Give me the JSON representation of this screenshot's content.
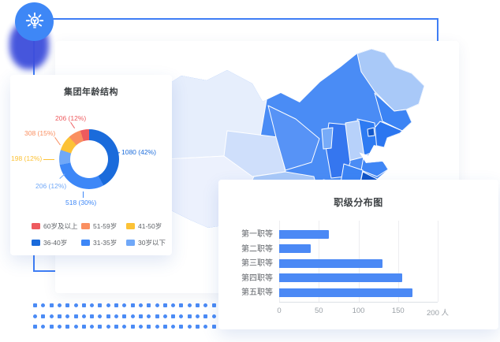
{
  "canvas": {
    "background": "#ffffff",
    "accent_line_color": "#3f7ef5"
  },
  "hero_icon": {
    "name": "lightbulb",
    "bg_color": "#3e87f6",
    "shadow_color": "#3d4ddb"
  },
  "age_chart": {
    "title": "集团年龄结构",
    "segments": [
      {
        "label": "36-40岁",
        "value": 1080,
        "pct": "42%",
        "color": "#1a6bdb",
        "sweep_deg": 151
      },
      {
        "label": "31-35岁",
        "value": 518,
        "pct": "30%",
        "color": "#3d87f7",
        "sweep_deg": 108
      },
      {
        "label": "30岁以下",
        "value": 206,
        "pct": "12%",
        "color": "#70a8f8",
        "sweep_deg": 29
      },
      {
        "label": "41-50岁",
        "value": 198,
        "pct": "12%",
        "color": "#fcc236",
        "sweep_deg": 30
      },
      {
        "label": "51-59岁",
        "value": 308,
        "pct": "15%",
        "color": "#fa8f60",
        "sweep_deg": 25
      },
      {
        "label": "60岁及以上",
        "value": 206,
        "pct": "12%",
        "color": "#ee5a5e",
        "sweep_deg": 17
      }
    ],
    "callouts": [
      {
        "text": "206 (12%)",
        "color": "#ee5a5e"
      },
      {
        "text": "308 (15%)",
        "color": "#fa8f60"
      },
      {
        "text": "198 (12%)",
        "color": "#fcc236"
      },
      {
        "text": "206 (12%)",
        "color": "#70a8f8"
      },
      {
        "text": "518 (30%)",
        "color": "#3d87f7"
      },
      {
        "text": "1080 (42%)",
        "color": "#1a6bdb"
      }
    ],
    "legend": [
      {
        "label": "60岁及以上",
        "color": "#ee5a5e"
      },
      {
        "label": "51-59岁",
        "color": "#fa8f60"
      },
      {
        "label": "41-50岁",
        "color": "#fcc236"
      },
      {
        "label": "36-40岁",
        "color": "#1a6bdb"
      },
      {
        "label": "31-35岁",
        "color": "#3d87f7"
      },
      {
        "label": "30岁以下",
        "color": "#70a8f8"
      }
    ]
  },
  "grade_chart": {
    "title": "职级分布图",
    "categories": [
      "第一职等",
      "第二职等",
      "第三职等",
      "第四职等",
      "第五职等"
    ],
    "values": [
      63,
      40,
      130,
      155,
      168
    ],
    "x_ticks": [
      "0",
      "50",
      "100",
      "150",
      "200 人"
    ],
    "xlim": [
      0,
      200
    ],
    "bar_color": "#4b89f5"
  },
  "map": {
    "kind": "china-choropleth",
    "shades": [
      "#e6eefc",
      "#ecf1fd",
      "#cfdffb",
      "#a9c9f8",
      "#c6d9fb",
      "#4a8cf5",
      "#3c84f4",
      "#2b76f0",
      "#1a66dc",
      "#1155c8"
    ]
  },
  "decorations": {
    "dot_grid": {
      "rows": 3,
      "cols": 23,
      "color": "#4b8bf5"
    }
  },
  "chart_data": [
    {
      "type": "pie",
      "title": "集团年龄结构",
      "labels": [
        "36-40岁",
        "31-35岁",
        "30岁以下",
        "41-50岁",
        "51-59岁",
        "60岁及以上"
      ],
      "values": [
        1080,
        518,
        206,
        198,
        308,
        206
      ],
      "percent_labels": [
        "42%",
        "30%",
        "12%",
        "12%",
        "15%",
        "12%"
      ],
      "colors": [
        "#1a6bdb",
        "#3d87f7",
        "#70a8f8",
        "#fcc236",
        "#fa8f60",
        "#ee5a5e"
      ],
      "donut": true,
      "legend_position": "bottom"
    },
    {
      "type": "bar",
      "title": "职级分布图",
      "orientation": "horizontal",
      "categories": [
        "第一职等",
        "第二职等",
        "第三职等",
        "第四职等",
        "第五职等"
      ],
      "values": [
        63,
        40,
        130,
        155,
        168
      ],
      "xlabel": "人",
      "xlim": [
        0,
        200
      ],
      "grid": true
    }
  ]
}
